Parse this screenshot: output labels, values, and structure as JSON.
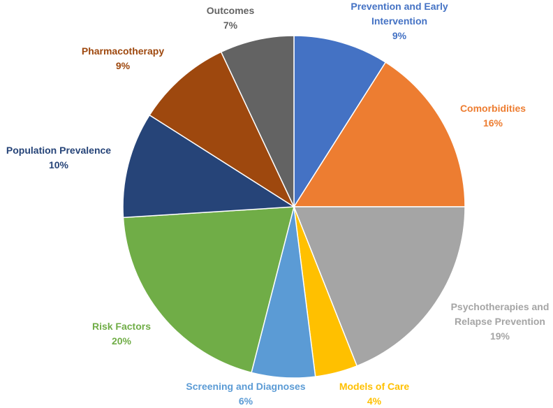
{
  "chart_data": {
    "type": "pie",
    "title": "",
    "slices": [
      {
        "name": "Prevention and Early Intervention",
        "label_lines": [
          "Prevention and Early",
          "Intervention"
        ],
        "value": 9,
        "value_label": "9%",
        "color": "#4472C4"
      },
      {
        "name": "Comorbidities",
        "label_lines": [
          "Comorbidities"
        ],
        "value": 16,
        "value_label": "16%",
        "color": "#ED7D31"
      },
      {
        "name": "Psychotherapies and Relapse Prevention",
        "label_lines": [
          "Psychotherapies and",
          "Relapse Prevention"
        ],
        "value": 19,
        "value_label": "19%",
        "color": "#A5A5A5"
      },
      {
        "name": "Models of Care",
        "label_lines": [
          "Models of Care"
        ],
        "value": 4,
        "value_label": "4%",
        "color": "#FFC000"
      },
      {
        "name": "Screening and Diagnoses",
        "label_lines": [
          "Screening and Diagnoses"
        ],
        "value": 6,
        "value_label": "6%",
        "color": "#5B9BD5"
      },
      {
        "name": "Risk Factors",
        "label_lines": [
          "Risk Factors"
        ],
        "value": 20,
        "value_label": "20%",
        "color": "#70AD47"
      },
      {
        "name": "Population Prevalence",
        "label_lines": [
          "Population Prevalence"
        ],
        "value": 10,
        "value_label": "10%",
        "color": "#264478"
      },
      {
        "name": "Pharmacotherapy",
        "label_lines": [
          "Pharmacotherapy"
        ],
        "value": 9,
        "value_label": "9%",
        "color": "#9E480E"
      },
      {
        "name": "Outcomes",
        "label_lines": [
          "Outcomes"
        ],
        "value": 7,
        "value_label": "7%",
        "color": "#636363"
      }
    ],
    "start_angle_deg": 0,
    "direction": "clockwise",
    "legend": "none",
    "labels": "outside"
  }
}
